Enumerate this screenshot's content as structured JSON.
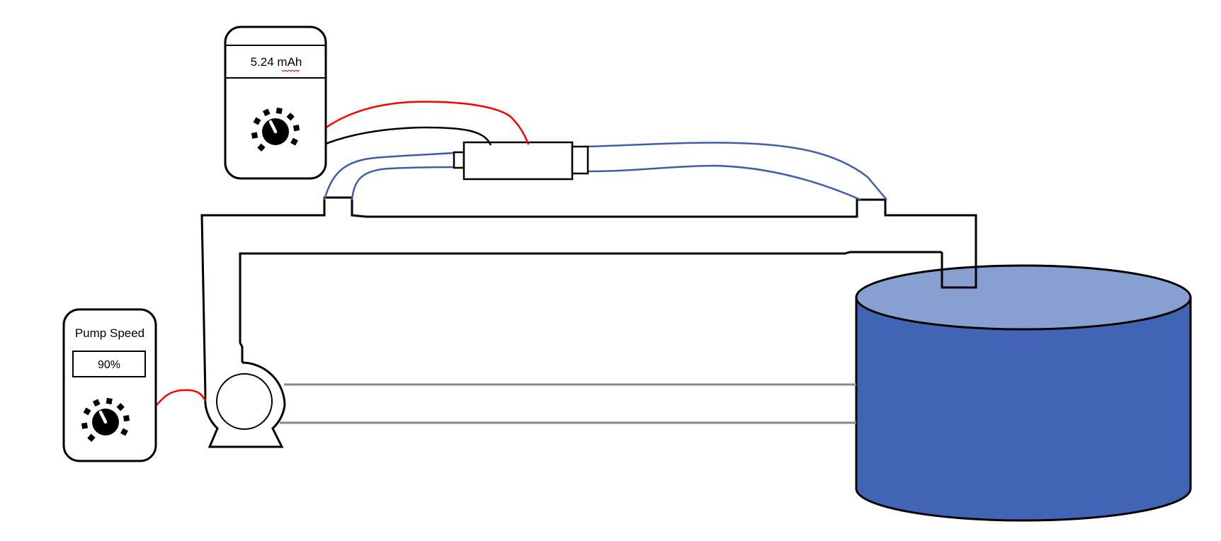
{
  "meter": {
    "reading": "5.24 mAh"
  },
  "pump_controller": {
    "title": "Pump Speed",
    "speed": "90%"
  },
  "colors": {
    "outline": "#000000",
    "power_wire": "#ff0000",
    "signal_wire": "#000000",
    "sensor_tube": "#3f5ea8",
    "tank_body": "#4165b4",
    "tank_top": "#889fd2",
    "return_line": "#888888",
    "spellcheck": "#cc0000"
  }
}
